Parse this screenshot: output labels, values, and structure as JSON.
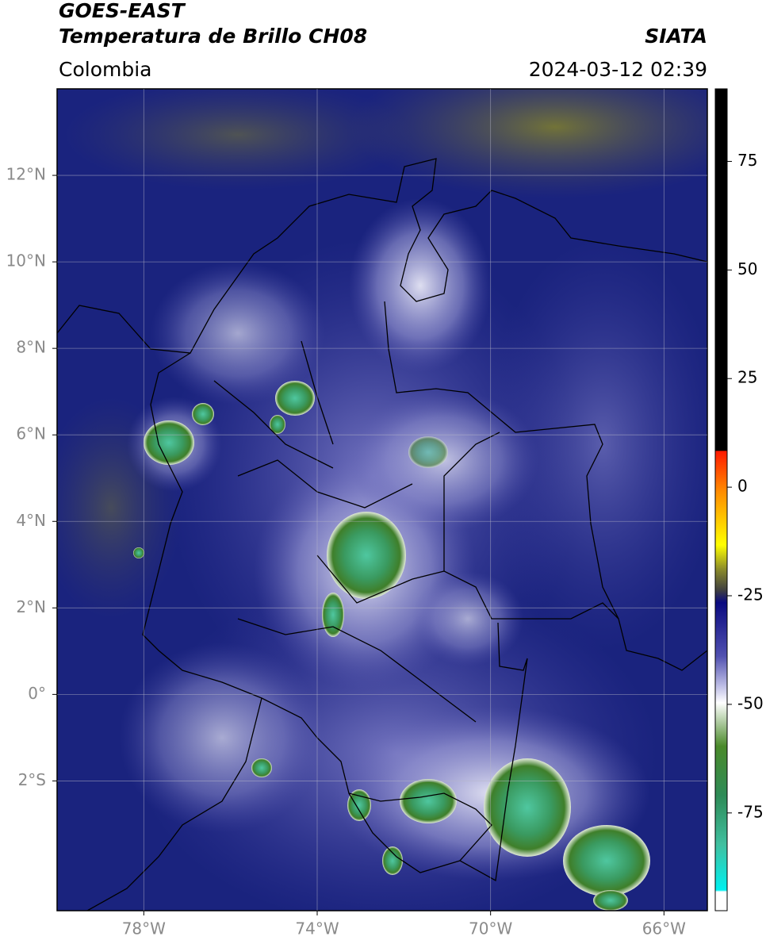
{
  "header": {
    "satellite": "GOES-EAST",
    "product": "Temperatura de Brillo CH08",
    "source": "SIATA",
    "region": "Colombia",
    "timestamp": "2024-03-12 02:39"
  },
  "map": {
    "xlim": [
      -80,
      -65
    ],
    "ylim": [
      -5,
      14
    ],
    "grid": true,
    "xticks": [
      {
        "value": -78,
        "label": "78°W"
      },
      {
        "value": -74,
        "label": "74°W"
      },
      {
        "value": -70,
        "label": "70°W"
      },
      {
        "value": -66,
        "label": "66°W"
      }
    ],
    "yticks": [
      {
        "value": 12,
        "label": "12°N"
      },
      {
        "value": 10,
        "label": "10°N"
      },
      {
        "value": 8,
        "label": "8°N"
      },
      {
        "value": 6,
        "label": "6°N"
      },
      {
        "value": 4,
        "label": "4°N"
      },
      {
        "value": 2,
        "label": "2°N"
      },
      {
        "value": 0,
        "label": "0°"
      },
      {
        "value": -2,
        "label": "2°S"
      }
    ]
  },
  "colorbar": {
    "lim": [
      -97.5,
      91.7
    ],
    "ticks": [
      75,
      50,
      25,
      0,
      -25,
      -50,
      -75
    ]
  }
}
